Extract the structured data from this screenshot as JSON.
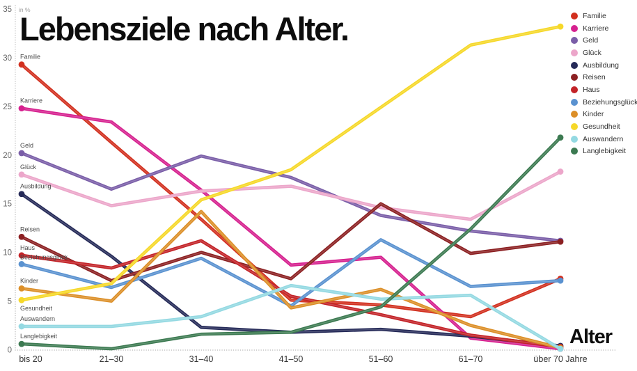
{
  "title": "Lebensziele nach Alter.",
  "x_axis_title": "Alter",
  "chart_data": {
    "type": "line",
    "title": "Lebensziele nach Alter.",
    "xlabel": "Alter",
    "ylabel": "in %",
    "ylim": [
      0,
      35
    ],
    "y_ticks": [
      0,
      5,
      10,
      15,
      20,
      25,
      30,
      35
    ],
    "grid": false,
    "legend_position": "top-right",
    "line_markers": "first-and-last-point",
    "categories": [
      "bis 20",
      "21–30",
      "31–40",
      "41–50",
      "51–60",
      "61–70",
      "über 70 Jahre"
    ],
    "series": [
      {
        "name": "Familie",
        "slug": "familie",
        "color": "#d2301f",
        "label_dy": -8,
        "values": [
          29.3,
          21.3,
          13.4,
          5.1,
          4.6,
          3.4,
          7.3
        ]
      },
      {
        "name": "Karriere",
        "slug": "karriere",
        "color": "#d6218f",
        "label_dy": -8,
        "values": [
          24.8,
          23.4,
          16.4,
          8.7,
          9.5,
          1.2,
          0.1
        ]
      },
      {
        "name": "Geld",
        "slug": "geld",
        "color": "#7a5ea8",
        "label_dy": -8,
        "values": [
          20.2,
          16.5,
          19.9,
          17.7,
          13.8,
          12.2,
          11.2
        ]
      },
      {
        "name": "Glück",
        "slug": "glueck",
        "color": "#eca6ca",
        "label_dy": -8,
        "values": [
          18.0,
          14.8,
          16.3,
          16.8,
          14.6,
          13.4,
          18.3
        ]
      },
      {
        "name": "Ausbildung",
        "slug": "ausbildung",
        "color": "#252a58",
        "label_dy": -8,
        "values": [
          16.0,
          9.6,
          2.3,
          1.8,
          2.1,
          1.4,
          0.4
        ]
      },
      {
        "name": "Reisen",
        "slug": "reisen",
        "color": "#8c2022",
        "label_dy": -8,
        "values": [
          11.6,
          7.1,
          10.0,
          7.3,
          15.0,
          9.9,
          11.1
        ]
      },
      {
        "name": "Haus",
        "slug": "haus",
        "color": "#c32328",
        "label_dy": -8,
        "values": [
          9.7,
          8.4,
          11.2,
          5.5,
          3.6,
          1.5,
          0.3
        ]
      },
      {
        "name": "Beziehungsglück",
        "slug": "beziehungsglueck",
        "color": "#5a92d0",
        "label_dy": -7,
        "values": [
          8.8,
          6.4,
          9.4,
          4.5,
          11.3,
          6.5,
          7.1
        ]
      },
      {
        "name": "Kinder",
        "slug": "kinder",
        "color": "#dc8f28",
        "label_dy": -8,
        "values": [
          6.3,
          5.0,
          14.2,
          4.3,
          6.2,
          2.5,
          0.2
        ]
      },
      {
        "name": "Gesundheit",
        "slug": "gesundheit",
        "color": "#f6d829",
        "label_dy": 15,
        "values": [
          5.1,
          6.8,
          15.4,
          18.5,
          24.9,
          31.3,
          33.2
        ]
      },
      {
        "name": "Auswandern",
        "slug": "auswandern",
        "color": "#94d9e2",
        "label_dy": -8,
        "values": [
          2.4,
          2.4,
          3.4,
          6.6,
          5.2,
          5.6,
          0.1
        ]
      },
      {
        "name": "Langlebigkeit",
        "slug": "langlebigkeit",
        "color": "#3c7a51",
        "label_dy": -8,
        "values": [
          0.6,
          0.1,
          1.6,
          1.8,
          4.4,
          12.4,
          21.8
        ]
      }
    ],
    "style": {
      "axis_dot_color": "#bcbcbc",
      "y_tick_color": "#666666",
      "x_tick_color": "#333333",
      "series_label_color": "#4a4a4a",
      "background": "#ffffff"
    }
  }
}
